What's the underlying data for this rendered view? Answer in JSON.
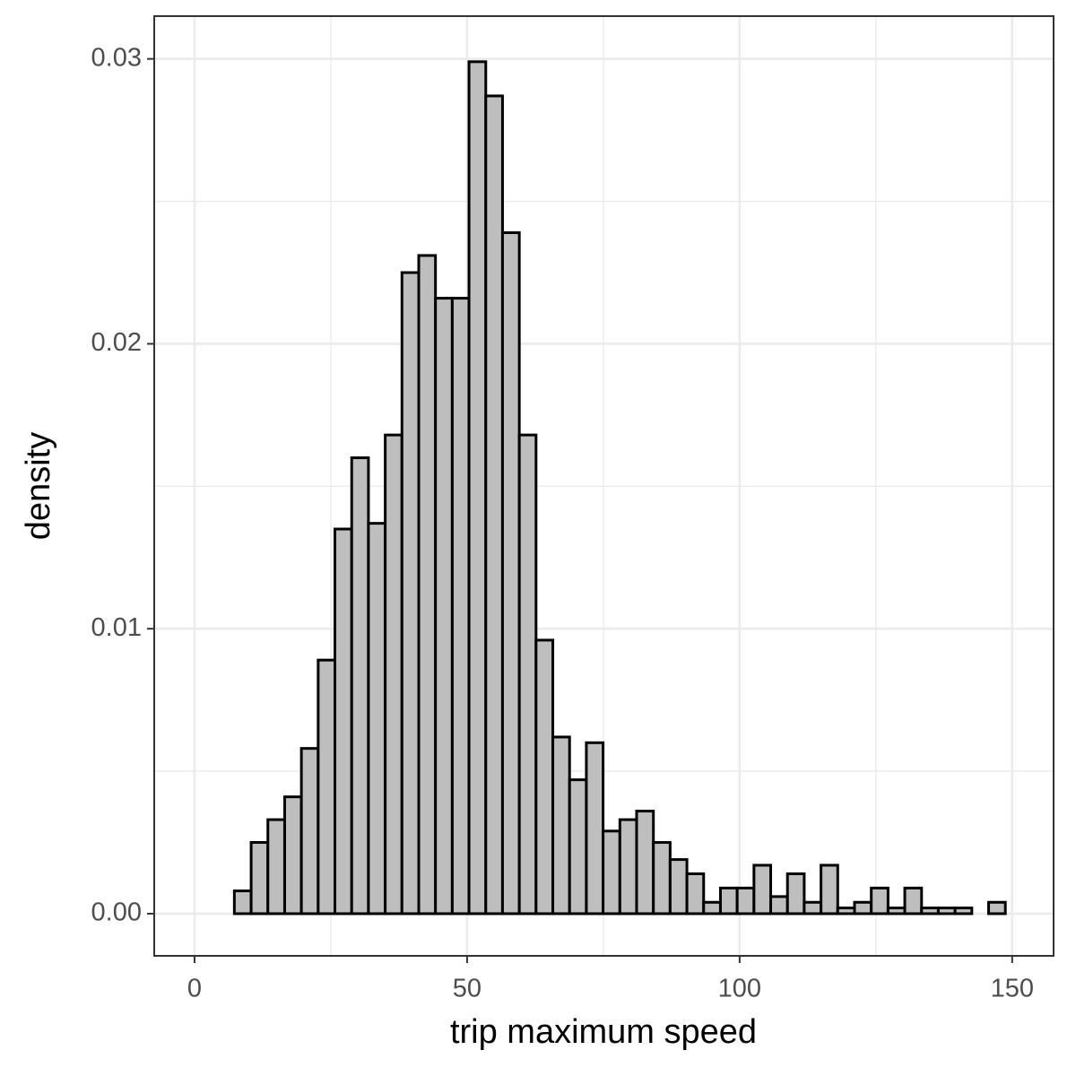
{
  "chart_data": {
    "type": "histogram",
    "x_label": "trip maximum speed",
    "y_label": "density",
    "bins": [
      1.15,
      4.23,
      7.3,
      10.38,
      13.45,
      16.53,
      19.6,
      22.68,
      25.75,
      28.83,
      31.9,
      34.98,
      38.05,
      41.13,
      44.2,
      47.28,
      50.35,
      53.43,
      56.5,
      59.58,
      62.65,
      65.73,
      68.8,
      71.88,
      74.95,
      78.03,
      81.1,
      84.18,
      87.25,
      90.33,
      93.4,
      96.48,
      99.55,
      102.63,
      105.7,
      108.78,
      111.85,
      114.93,
      118.0,
      121.08,
      124.15,
      127.23,
      130.3,
      133.38,
      136.45,
      139.53,
      142.6,
      145.68,
      148.75
    ],
    "values": [
      0,
      0,
      0.0008,
      0.0025,
      0.0033,
      0.0041,
      0.0058,
      0.0089,
      0.0135,
      0.016,
      0.0137,
      0.0168,
      0.0225,
      0.0231,
      0.0216,
      0.0216,
      0.0299,
      0.0287,
      0.0239,
      0.0168,
      0.0096,
      0.0062,
      0.0047,
      0.006,
      0.0029,
      0.0033,
      0.0036,
      0.0025,
      0.0019,
      0.0014,
      0.0004,
      0.0009,
      0.0009,
      0.0017,
      0.0006,
      0.0014,
      0.0004,
      0.0017,
      0.0002,
      0.0004,
      0.0009,
      0.0002,
      0.0009,
      0.0002,
      0.0002,
      0.0002,
      0,
      0.0004
    ],
    "color": "#bebebe",
    "edge_color": "#000000",
    "xlim": [
      -7.4,
      157.6
    ],
    "xticks": [
      0,
      50,
      100,
      150
    ],
    "x_minor_ticks": [
      25,
      75,
      125
    ],
    "ylim": [
      -0.00148,
      0.0315
    ],
    "yticks": [
      {
        "value": 0,
        "label": "0.00"
      },
      {
        "value": 0.01,
        "label": "0.01"
      },
      {
        "value": 0.02,
        "label": "0.02"
      },
      {
        "value": 0.03,
        "label": "0.03"
      }
    ],
    "y_minor_ticks": [
      0.005,
      0.015,
      0.025
    ],
    "grid": true
  }
}
